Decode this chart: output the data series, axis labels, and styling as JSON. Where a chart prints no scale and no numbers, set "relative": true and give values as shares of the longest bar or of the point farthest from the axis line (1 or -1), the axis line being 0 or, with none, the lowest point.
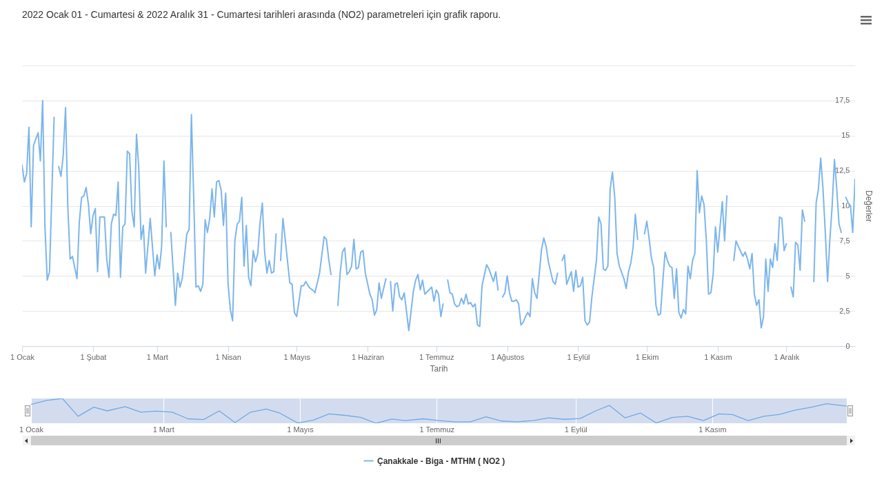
{
  "chart_data": [
    {
      "type": "line",
      "title": "2022 Ocak 01 - Cumartesi & 2022 Aralık 31 - Cumartesi tarihleri arasında (NO2) parametreleri için grafik raporu.",
      "xlabel": "Tarih",
      "ylabel": "Değerler",
      "legend": "bottom",
      "grid": "y",
      "xlim": [
        "2022-01-01",
        "2022-12-31"
      ],
      "xticks": [
        {
          "value": "2022-01-01",
          "label": "1 Ocak"
        },
        {
          "value": "2022-02-01",
          "label": "1 Şubat"
        },
        {
          "value": "2022-03-01",
          "label": "1 Mart"
        },
        {
          "value": "2022-04-01",
          "label": "1 Nisan"
        },
        {
          "value": "2022-05-01",
          "label": "1 Mayıs"
        },
        {
          "value": "2022-06-01",
          "label": "1 Haziran"
        },
        {
          "value": "2022-07-01",
          "label": "1 Temmuz"
        },
        {
          "value": "2022-08-01",
          "label": "1 Ağustos"
        },
        {
          "value": "2022-09-01",
          "label": "1 Eylül"
        },
        {
          "value": "2022-10-01",
          "label": "1 Ekim"
        },
        {
          "value": "2022-11-01",
          "label": "1 Kasım"
        },
        {
          "value": "2022-12-01",
          "label": "1 Aralık"
        }
      ],
      "ylim": [
        0,
        20
      ],
      "yticks": [
        0,
        {
          "value": 2.5,
          "label": "2,5"
        },
        5,
        {
          "value": 7.5,
          "label": "7,5"
        },
        10,
        {
          "value": 12.5,
          "label": "12,5"
        },
        15,
        {
          "value": 17.5,
          "label": "17,5"
        },
        {
          "value": 20,
          "label": null
        }
      ],
      "x": [
        "2022-01-01",
        "2022-01-02",
        "2022-01-03",
        "2022-01-04",
        "2022-01-05",
        "2022-01-06",
        "2022-01-08",
        "2022-01-09",
        "2022-01-10",
        "2022-01-11",
        "2022-01-12",
        "2022-01-13",
        "2022-01-15",
        "2022-01-16",
        "2022-01-17",
        "2022-01-18",
        "2022-01-19",
        "2022-01-20",
        "2022-01-21",
        "2022-01-22",
        "2022-01-23",
        "2022-01-25",
        "2022-01-26",
        "2022-01-27",
        "2022-01-28",
        "2022-01-29",
        "2022-01-30",
        "2022-01-31",
        "2022-02-01",
        "2022-02-02",
        "2022-02-03",
        "2022-02-04",
        "2022-02-06",
        "2022-02-07",
        "2022-02-08",
        "2022-02-09",
        "2022-02-10",
        "2022-02-11",
        "2022-02-12",
        "2022-02-13",
        "2022-02-14",
        "2022-02-15",
        "2022-02-16",
        "2022-02-17",
        "2022-02-18",
        "2022-02-19",
        "2022-02-20",
        "2022-02-21",
        "2022-02-22",
        "2022-02-23",
        "2022-02-24",
        "2022-02-26",
        "2022-02-28",
        "2022-03-01",
        "2022-03-02",
        "2022-03-03",
        "2022-03-04",
        "2022-03-05",
        "2022-03-06",
        "2022-03-07",
        "2022-03-09",
        "2022-03-10",
        "2022-03-11",
        "2022-03-12",
        "2022-03-14",
        "2022-03-15",
        "2022-03-16",
        "2022-03-17",
        "2022-03-18",
        "2022-03-19",
        "2022-03-20",
        "2022-03-21",
        "2022-03-22",
        "2022-03-23",
        "2022-03-24",
        "2022-03-25",
        "2022-03-26",
        "2022-03-27",
        "2022-03-28",
        "2022-03-29",
        "2022-03-30",
        "2022-03-31",
        "2022-04-01",
        "2022-04-02",
        "2022-04-03",
        "2022-04-04",
        "2022-04-05",
        "2022-04-06",
        "2022-04-07",
        "2022-04-08",
        "2022-04-09",
        "2022-04-10",
        "2022-04-11",
        "2022-04-12",
        "2022-04-13",
        "2022-04-14",
        "2022-04-15",
        "2022-04-16",
        "2022-04-17",
        "2022-04-18",
        "2022-04-19",
        "2022-04-20",
        "2022-04-21",
        "2022-04-22",
        "2022-04-23",
        "2022-04-24",
        "2022-04-25",
        "2022-04-26",
        "2022-04-28",
        "2022-04-29",
        "2022-04-30",
        "2022-05-01",
        "2022-05-03",
        "2022-05-04",
        "2022-05-05",
        "2022-05-06",
        "2022-05-07",
        "2022-05-08",
        "2022-05-09",
        "2022-05-11",
        "2022-05-13",
        "2022-05-14",
        "2022-05-15",
        "2022-05-16",
        "2022-05-17",
        "2022-05-19",
        "2022-05-20",
        "2022-05-21",
        "2022-05-22",
        "2022-05-23",
        "2022-05-24",
        "2022-05-25",
        "2022-05-26",
        "2022-05-27",
        "2022-05-28",
        "2022-05-29",
        "2022-05-30",
        "2022-05-31",
        "2022-06-02",
        "2022-06-03",
        "2022-06-04",
        "2022-06-05",
        "2022-06-06",
        "2022-06-07",
        "2022-06-09",
        "2022-06-10",
        "2022-06-11",
        "2022-06-12",
        "2022-06-13",
        "2022-06-14",
        "2022-06-15",
        "2022-06-16",
        "2022-06-17",
        "2022-06-19",
        "2022-06-21",
        "2022-06-22",
        "2022-06-23",
        "2022-06-24",
        "2022-06-25",
        "2022-06-26",
        "2022-06-29",
        "2022-06-30",
        "2022-07-01",
        "2022-07-02",
        "2022-07-03",
        "2022-07-04",
        "2022-07-05",
        "2022-07-06",
        "2022-07-07",
        "2022-07-08",
        "2022-07-09",
        "2022-07-10",
        "2022-07-11",
        "2022-07-12",
        "2022-07-13",
        "2022-07-14",
        "2022-07-15",
        "2022-07-16",
        "2022-07-17",
        "2022-07-18",
        "2022-07-19",
        "2022-07-20",
        "2022-07-21",
        "2022-07-23",
        "2022-07-24",
        "2022-07-26",
        "2022-07-27",
        "2022-07-28",
        "2022-07-29",
        "2022-07-30",
        "2022-07-31",
        "2022-08-01",
        "2022-08-02",
        "2022-08-03",
        "2022-08-04",
        "2022-08-05",
        "2022-08-06",
        "2022-08-07",
        "2022-08-08",
        "2022-08-09",
        "2022-08-10",
        "2022-08-11",
        "2022-08-12",
        "2022-08-13",
        "2022-08-14",
        "2022-08-16",
        "2022-08-17",
        "2022-08-18",
        "2022-08-19",
        "2022-08-20",
        "2022-08-21",
        "2022-08-22",
        "2022-08-23",
        "2022-08-24",
        "2022-08-25",
        "2022-08-26",
        "2022-08-27",
        "2022-08-29",
        "2022-08-30",
        "2022-08-31",
        "2022-09-01",
        "2022-09-02",
        "2022-09-03",
        "2022-09-04",
        "2022-09-05",
        "2022-09-06",
        "2022-09-07",
        "2022-09-09",
        "2022-09-10",
        "2022-09-11",
        "2022-09-12",
        "2022-09-13",
        "2022-09-14",
        "2022-09-15",
        "2022-09-16",
        "2022-09-17",
        "2022-09-18",
        "2022-09-19",
        "2022-09-21",
        "2022-09-22",
        "2022-09-23",
        "2022-09-24",
        "2022-09-25",
        "2022-09-26",
        "2022-09-27",
        "2022-09-28",
        "2022-09-30",
        "2022-10-01",
        "2022-10-02",
        "2022-10-03",
        "2022-10-04",
        "2022-10-05",
        "2022-10-06",
        "2022-10-07",
        "2022-10-08",
        "2022-10-09",
        "2022-10-10",
        "2022-10-11",
        "2022-10-12",
        "2022-10-13",
        "2022-10-14",
        "2022-10-15",
        "2022-10-16",
        "2022-10-17",
        "2022-10-18",
        "2022-10-19",
        "2022-10-20",
        "2022-10-21",
        "2022-10-22",
        "2022-10-23",
        "2022-10-24",
        "2022-10-25",
        "2022-10-26",
        "2022-10-27",
        "2022-10-28",
        "2022-10-29",
        "2022-10-30",
        "2022-10-31",
        "2022-11-01",
        "2022-11-03",
        "2022-11-04",
        "2022-11-05",
        "2022-11-06",
        "2022-11-08",
        "2022-11-09",
        "2022-11-10",
        "2022-11-12",
        "2022-11-13",
        "2022-11-14",
        "2022-11-15",
        "2022-11-16",
        "2022-11-17",
        "2022-11-18",
        "2022-11-19",
        "2022-11-20",
        "2022-11-21",
        "2022-11-22",
        "2022-11-23",
        "2022-11-24",
        "2022-11-25",
        "2022-11-26",
        "2022-11-27",
        "2022-11-28",
        "2022-11-29",
        "2022-11-30",
        "2022-12-01",
        "2022-12-02",
        "2022-12-03",
        "2022-12-04",
        "2022-12-05",
        "2022-12-06",
        "2022-12-07",
        "2022-12-08",
        "2022-12-09",
        "2022-12-10",
        "2022-12-13",
        "2022-12-14",
        "2022-12-15",
        "2022-12-16",
        "2022-12-17",
        "2022-12-18",
        "2022-12-19",
        "2022-12-20",
        "2022-12-21",
        "2022-12-22",
        "2022-12-23",
        "2022-12-24",
        "2022-12-25",
        "2022-12-26",
        "2022-12-27",
        "2022-12-28",
        "2022-12-29",
        "2022-12-30",
        "2022-12-31"
      ],
      "series": [
        {
          "name": "Çanakkale - Biga - MTHM ( NO2 )",
          "color": "#7cb5ec",
          "values": [
            12.9,
            11.7,
            12.3,
            15.6,
            8.5,
            14.3,
            15.2,
            13.2,
            17.5,
            8.5,
            4.7,
            5.3,
            16.3,
            null,
            12.8,
            12.1,
            13.6,
            17,
            9.9,
            6.2,
            6.4,
            4.8,
            8.8,
            10.6,
            10.7,
            11.3,
            10.1,
            8,
            9.3,
            9.8,
            5.3,
            9.2,
            9.2,
            6.2,
            4.9,
            8.7,
            9.4,
            9.3,
            11.7,
            4.9,
            8.5,
            8.7,
            13.9,
            13.7,
            9.6,
            8.5,
            15.1,
            12.7,
            7.6,
            8.6,
            5.2,
            9.1,
            5,
            6.5,
            5.5,
            7.1,
            13.2,
            8.5,
            null,
            8.1,
            2.9,
            5.2,
            4.2,
            4.8,
            8,
            8.3,
            16.5,
            10.6,
            4.2,
            4.3,
            3.9,
            4.4,
            9,
            8.1,
            9.1,
            11.2,
            9.2,
            11.7,
            11.8,
            11.1,
            8.6,
            10.9,
            4.5,
            2.6,
            1.8,
            7.5,
            8.7,
            8.9,
            10.6,
            5.7,
            8.6,
            4.9,
            4.3,
            6.8,
            6,
            6.6,
            8.8,
            10.2,
            6.7,
            5.2,
            6.1,
            5.2,
            5.3,
            8,
            null,
            6.1,
            9.1,
            7.6,
            4.5,
            4.4,
            2.4,
            2.1,
            4.3,
            4.3,
            4.6,
            4.3,
            4.1,
            4,
            3.8,
            5.2,
            7.8,
            7.6,
            6.2,
            5.1,
            null,
            2.9,
            5.2,
            6.7,
            7,
            5.1,
            5.3,
            5.7,
            7.6,
            5.5,
            5.6,
            6.7,
            6.8,
            5.2,
            3.7,
            3.3,
            2.2,
            2.6,
            4.5,
            3.4,
            4.8,
            null,
            4.6,
            2.5,
            4.4,
            4.5,
            3.5,
            3.3,
            3.8,
            1.1,
            3.9,
            4.7,
            5.1,
            4,
            4.7,
            3.7,
            4.2,
            3.2,
            4,
            3.7,
            2.1,
            3,
            null,
            4.7,
            3.8,
            3.7,
            3,
            2.8,
            2.9,
            3.4,
            3,
            3.7,
            3,
            3.1,
            2.8,
            3,
            1.5,
            1.4,
            4.3,
            5.8,
            5.5,
            4.6,
            5.3,
            4,
            null,
            3.5,
            3.8,
            5,
            3.8,
            3.2,
            3.2,
            3.3,
            3,
            1.5,
            1.7,
            2.1,
            2.4,
            2.1,
            4.8,
            3.8,
            3.4,
            6.9,
            7.7,
            7.1,
            6,
            5.3,
            4.6,
            4.4,
            5.2,
            null,
            6.1,
            6.5,
            4.4,
            5.3,
            3.9,
            5.4,
            4.2,
            4.3,
            4.9,
            1.8,
            1.5,
            1.7,
            3.5,
            6.1,
            9.2,
            8.7,
            5.5,
            5.4,
            5.7,
            11.2,
            12.4,
            10.6,
            6.6,
            5.7,
            4.8,
            4.1,
            5.3,
            5.9,
            7,
            9.4,
            7.6,
            null,
            8,
            8.9,
            7.7,
            6.3,
            5.6,
            2.9,
            2.2,
            2.3,
            4.6,
            6.7,
            6.1,
            5.7,
            5.6,
            3.4,
            5.5,
            2.4,
            2,
            2.6,
            2.3,
            5.7,
            4.8,
            6.1,
            6.6,
            12.5,
            9.5,
            10.7,
            10.1,
            7.6,
            3.7,
            3.8,
            5.1,
            8.5,
            6.7,
            10.3,
            7.5,
            10.7,
            null,
            6.1,
            7.5,
            7.1,
            6.4,
            6.7,
            6.2,
            5.5,
            6.6,
            3.7,
            2.9,
            3.3,
            1.3,
            2.1,
            6.2,
            3.9,
            6.2,
            5.6,
            7.3,
            6.1,
            9.2,
            9.1,
            6.8,
            7.3,
            null,
            4.2,
            3.5,
            7.4,
            7.2,
            5.4,
            9.7,
            8.9,
            null,
            4.6,
            10.2,
            11.2,
            13.4,
            11.2,
            8.1,
            4.6,
            7.6,
            10,
            13.3,
            11.2,
            8.7,
            8.1,
            null,
            10.6,
            10.2,
            10,
            8.1,
            11.9
          ]
        }
      ]
    },
    {
      "type": "line",
      "relative": true,
      "grid": "x",
      "tick_labels": "x",
      "xlim": [
        "2022-01-01",
        "2022-12-31"
      ],
      "xticks": [
        {
          "value": "2022-01-01",
          "label": "1 Ocak"
        },
        {
          "value": "2022-03-01",
          "label": "1 Mart"
        },
        {
          "value": "2022-05-01",
          "label": "1 Mayıs"
        },
        {
          "value": "2022-07-01",
          "label": "1 Temmuz"
        },
        {
          "value": "2022-09-01",
          "label": "1 Eylül"
        },
        {
          "value": "2022-11-01",
          "label": "1 Kasım"
        }
      ],
      "x": [
        "2022-01-01",
        "2022-01-08",
        "2022-01-15",
        "2022-01-22",
        "2022-01-29",
        "2022-02-04",
        "2022-02-12",
        "2022-02-19",
        "2022-02-26",
        "2022-03-05",
        "2022-03-12",
        "2022-03-19",
        "2022-03-26",
        "2022-04-02",
        "2022-04-09",
        "2022-04-16",
        "2022-04-22",
        "2022-04-30",
        "2022-05-07",
        "2022-05-14",
        "2022-05-21",
        "2022-05-28",
        "2022-06-04",
        "2022-06-11",
        "2022-06-17",
        "2022-06-25",
        "2022-07-02",
        "2022-07-09",
        "2022-07-16",
        "2022-07-23",
        "2022-07-30",
        "2022-08-06",
        "2022-08-13",
        "2022-08-20",
        "2022-08-27",
        "2022-09-03",
        "2022-09-10",
        "2022-09-16",
        "2022-09-23",
        "2022-09-30",
        "2022-10-07",
        "2022-10-14",
        "2022-10-21",
        "2022-10-28",
        "2022-11-04",
        "2022-11-10",
        "2022-11-17",
        "2022-11-24",
        "2022-12-01",
        "2022-12-08",
        "2022-12-15",
        "2022-12-22",
        "2022-12-31"
      ],
      "series": [
        {
          "color": "#6fa8e6",
          "values": [
            0.76,
            0.92,
            1,
            0.28,
            0.65,
            0.5,
            0.67,
            0.45,
            0.49,
            0.45,
            0.18,
            0.15,
            0.5,
            0.03,
            0.45,
            0.57,
            0.41,
            0.01,
            0.13,
            0.38,
            0.32,
            0.24,
            0,
            0.17,
            0.11,
            0.18,
            0.11,
            0.06,
            0.06,
            0.26,
            0.09,
            0.06,
            0.11,
            0.22,
            0.16,
            0.19,
            0.5,
            0.72,
            0.22,
            0.41,
            0.01,
            0.23,
            0.28,
            0.11,
            0.38,
            0.35,
            0.11,
            0.28,
            0.36,
            0.53,
            0.64,
            0.79,
            0.69
          ]
        }
      ]
    }
  ]
}
